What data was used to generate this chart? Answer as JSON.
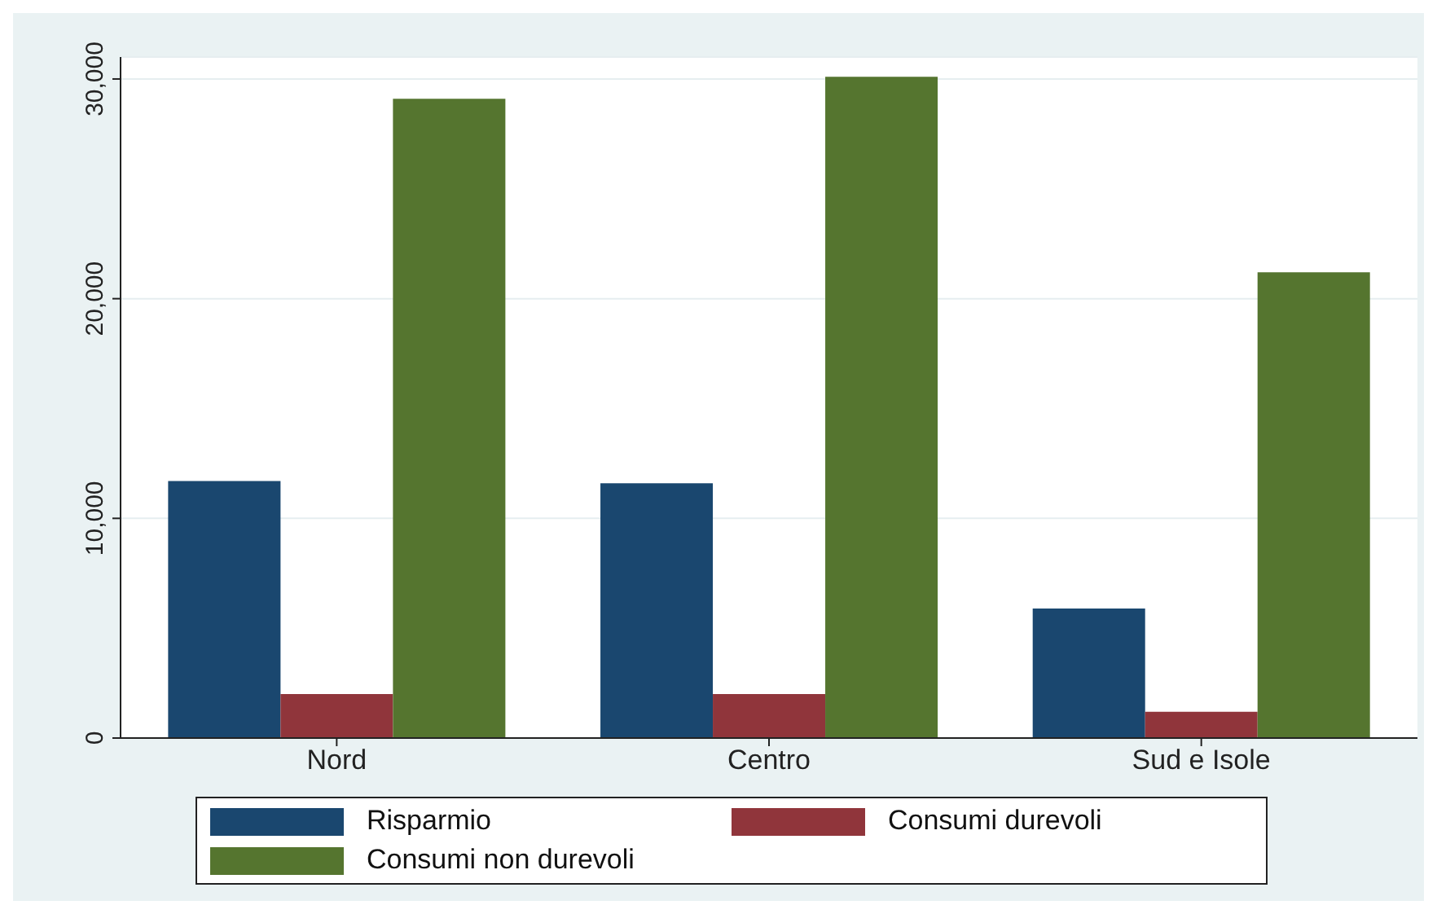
{
  "chart_data": {
    "type": "bar",
    "categories": [
      "Nord",
      "Centro",
      "Sud e Isole"
    ],
    "series": [
      {
        "name": "Risparmio",
        "color": "#1a476f",
        "values": [
          11700,
          11600,
          5900
        ]
      },
      {
        "name": "Consumi durevoli",
        "color": "#90353b",
        "values": [
          2000,
          2000,
          1200
        ]
      },
      {
        "name": "Consumi non durevoli",
        "color": "#55752f",
        "values": [
          29100,
          30100,
          21200
        ]
      }
    ],
    "ylim": [
      0,
      31000
    ],
    "yticks": [
      {
        "value": 0,
        "label": "0"
      },
      {
        "value": 10000,
        "label": "10,000"
      },
      {
        "value": 20000,
        "label": "20,000"
      },
      {
        "value": 30000,
        "label": "30,000"
      }
    ],
    "grid": "y",
    "legend": "bottom"
  }
}
